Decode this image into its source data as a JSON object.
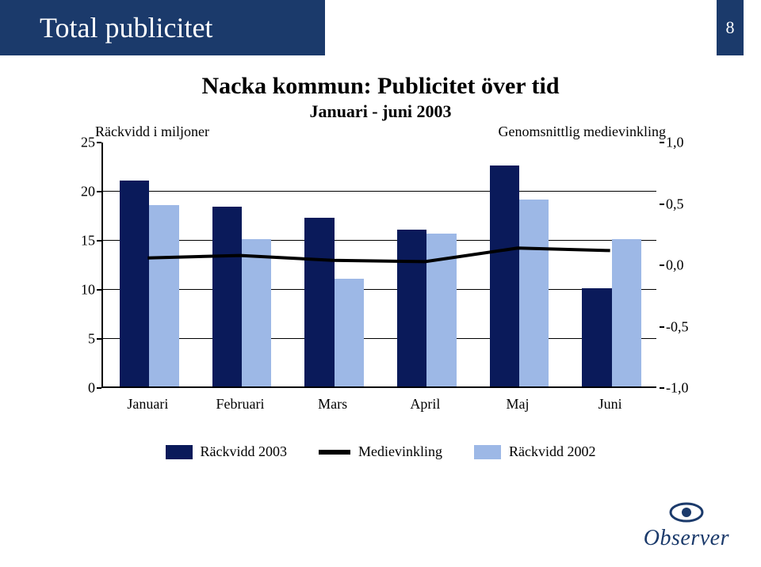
{
  "header": {
    "bg_color": "#1b3a6b",
    "title": "Total publicitet",
    "title_color": "#ffffff",
    "page_number": "8"
  },
  "chart": {
    "title": "Nacka kommun: Publicitet över tid",
    "subtitle": "Januari - juni 2003",
    "left_axis_label": "Räckvidd i miljoner",
    "right_axis_label": "Genomsnittlig medievinkling",
    "title_fontsize": 30,
    "subtitle_fontsize": 22,
    "axis_label_fontsize": 18,
    "tick_fontsize": 18,
    "categories": [
      "Januari",
      "Februari",
      "Mars",
      "April",
      "Maj",
      "Juni"
    ],
    "series_a": {
      "label": "Räckvidd 2003",
      "color": "#0a1a5a",
      "values": [
        21,
        18.3,
        17.2,
        16,
        22.5,
        10
      ]
    },
    "series_b": {
      "label": "Räckvidd 2002",
      "color": "#9db8e6",
      "values": [
        18.5,
        15,
        11,
        15.6,
        19,
        15
      ]
    },
    "line": {
      "label": "Medievinkling",
      "color": "#000000",
      "width": 4,
      "values": [
        0.06,
        0.08,
        0.04,
        0.03,
        0.14,
        0.12
      ]
    },
    "left_axis": {
      "min": 0,
      "max": 25,
      "step": 5
    },
    "right_axis": {
      "min": -1.0,
      "max": 1.0,
      "step": 0.5
    },
    "left_ticks": [
      "0",
      "5",
      "10",
      "15",
      "20",
      "25"
    ],
    "right_ticks": [
      "-1,0",
      "-0,5",
      "0,0",
      "0,5",
      "1,0"
    ],
    "plot_bg": "#ffffff",
    "grid_color": "#000000",
    "bar_width_ratio": 0.32
  },
  "legend": {
    "items": [
      {
        "key": "a",
        "label": "Räckvidd 2003"
      },
      {
        "key": "line",
        "label": "Medievinkling"
      },
      {
        "key": "b",
        "label": "Räckvidd 2002"
      }
    ]
  },
  "logo": {
    "color": "#1b3a6b",
    "text": "Observer"
  }
}
